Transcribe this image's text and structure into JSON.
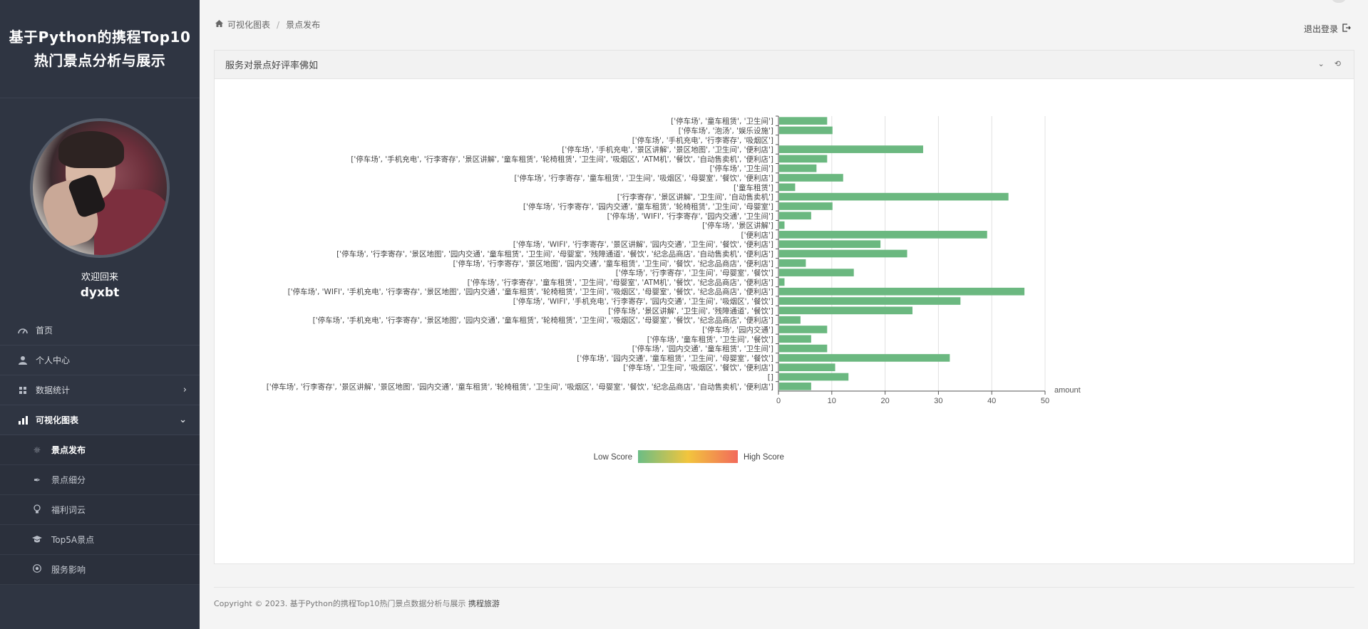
{
  "brand": {
    "title_line1": "基于Python的携程Top10",
    "title_line2": "热门景点分析与展示"
  },
  "profile": {
    "welcome": "欢迎回来",
    "username": "dyxbt"
  },
  "nav": {
    "items": [
      {
        "label": "首页",
        "icon": "dashboard-icon"
      },
      {
        "label": "个人中心",
        "icon": "user-icon"
      },
      {
        "label": "数据统计",
        "icon": "grid-icon"
      },
      {
        "label": "可视化图表",
        "icon": "bar-chart-icon"
      }
    ],
    "sub_items": [
      {
        "label": "景点发布",
        "icon": "sun-icon"
      },
      {
        "label": "景点细分",
        "icon": "feather-icon"
      },
      {
        "label": "福利词云",
        "icon": "bulb-icon"
      },
      {
        "label": "Top5A景点",
        "icon": "graduation-icon"
      },
      {
        "label": "服务影响",
        "icon": "soccer-icon"
      }
    ]
  },
  "breadcrumb": {
    "home": "可视化图表",
    "current": "景点发布"
  },
  "header": {
    "logout": "退出登录"
  },
  "panel": {
    "title": "服务对景点好评率佛如"
  },
  "footer": {
    "copyright": "Copyright © 2023. 基于Python的携程Top10热门景点数据分析与展示",
    "brand": "携程旅游"
  },
  "chart_data": {
    "type": "bar",
    "orientation": "horizontal",
    "xlabel": "amount",
    "xlim": [
      0,
      50
    ],
    "x_ticks": [
      0,
      10,
      20,
      30,
      40,
      50
    ],
    "grid": true,
    "visual_map": {
      "low_label": "Low Score",
      "high_label": "High Score",
      "colors": [
        "#6bbd85",
        "#f2c53d",
        "#f26a5b"
      ]
    },
    "bar_color": "#6bb880",
    "categories": [
      "['停车场', '童车租赁', '卫生间']",
      "['停车场', '泡汤', '娱乐设施']",
      "['停车场', '手机充电', '行李寄存', '吸烟区']",
      "['停车场', '手机充电', '景区讲解', '景区地图', '卫生间', '便利店']",
      "['停车场', '手机充电', '行李寄存', '景区讲解', '童车租赁', '轮椅租赁', '卫生间', '吸烟区', 'ATM机', '餐饮', '自动售卖机', '便利店']",
      "['停车场', '卫生间']",
      "['停车场', '行李寄存', '童车租赁', '卫生间', '吸烟区', '母婴室', '餐饮', '便利店']",
      "['童车租赁']",
      "['行李寄存', '景区讲解', '卫生间', '自动售卖机']",
      "['停车场', '行李寄存', '园内交通', '童车租赁', '轮椅租赁', '卫生间', '母婴室']",
      "['停车场', 'WIFI', '行李寄存', '园内交通', '卫生间']",
      "['停车场', '景区讲解']",
      "['便利店']",
      "['停车场', 'WIFI', '行李寄存', '景区讲解', '园内交通', '卫生间', '餐饮', '便利店']",
      "['停车场', '行李寄存', '景区地图', '园内交通', '童车租赁', '卫生间', '母婴室', '残障通道', '餐饮', '纪念品商店', '自动售卖机', '便利店']",
      "['停车场', '行李寄存', '景区地图', '园内交通', '童车租赁', '卫生间', '餐饮', '纪念品商店', '便利店']",
      "['停车场', '行李寄存', '卫生间', '母婴室', '餐饮']",
      "['停车场', '行李寄存', '童车租赁', '卫生间', '母婴室', 'ATM机', '餐饮', '纪念品商店', '便利店']",
      "['停车场', 'WIFI', '手机充电', '行李寄存', '景区地图', '园内交通', '童车租赁', '轮椅租赁', '卫生间', '吸烟区', '母婴室', '餐饮', '纪念品商店', '便利店']",
      "['停车场', 'WIFI', '手机充电', '行李寄存', '园内交通', '卫生间', '吸烟区', '餐饮']",
      "['停车场', '景区讲解', '卫生间', '残障通道', '餐饮']",
      "['停车场', '手机充电', '行李寄存', '景区地图', '园内交通', '童车租赁', '轮椅租赁', '卫生间', '吸烟区', '母婴室', '餐饮', '纪念品商店', '便利店']",
      "['停车场', '园内交通']",
      "['停车场', '童车租赁', '卫生间', '餐饮']",
      "['停车场', '园内交通', '童车租赁', '卫生间']",
      "['停车场', '园内交通', '童车租赁', '卫生间', '母婴室', '餐饮']",
      "['停车场', '卫生间', '吸烟区', '餐饮', '便利店']",
      "[]",
      "['停车场', '行李寄存', '景区讲解', '景区地图', '园内交通', '童车租赁', '轮椅租赁', '卫生间', '吸烟区', '母婴室', '餐饮', '纪念品商店', '自动售卖机', '便利店']"
    ],
    "values": [
      9,
      10,
      0,
      27,
      9,
      7,
      12,
      3,
      43,
      10,
      6,
      1,
      39,
      19,
      24,
      5,
      14,
      1,
      46,
      34,
      25,
      4,
      9,
      6,
      9,
      32,
      10.5,
      13,
      6
    ]
  }
}
